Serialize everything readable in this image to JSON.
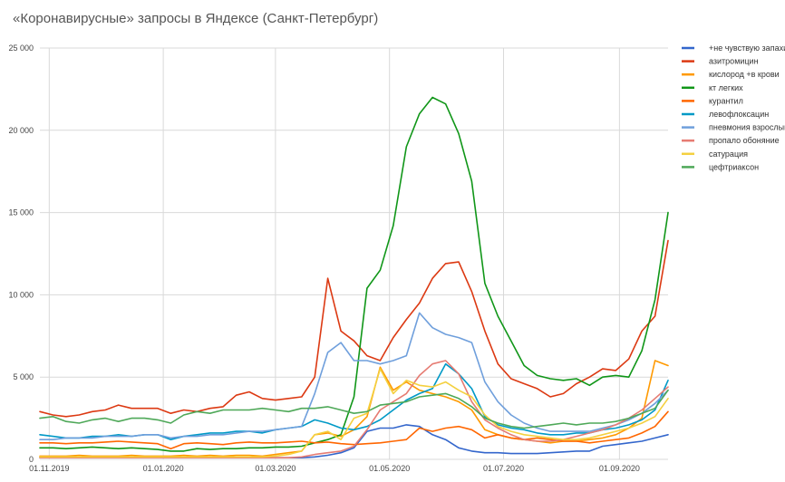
{
  "chart_data": {
    "type": "line",
    "title": "«Коронавирусные» запросы в Яндексе (Санкт-Петербург)",
    "xlabel": "",
    "ylabel": "",
    "x_start": "2019-10-27",
    "x_end": "2020-09-27",
    "x_ticks": [
      {
        "date": "2019-11-01",
        "label": "01.11.2019"
      },
      {
        "date": "2020-01-01",
        "label": "01.01.2020"
      },
      {
        "date": "2020-03-01",
        "label": "01.03.2020"
      },
      {
        "date": "2020-05-01",
        "label": "01.05.2020"
      },
      {
        "date": "2020-07-01",
        "label": "01.07.2020"
      },
      {
        "date": "2020-09-01",
        "label": "01.09.2020"
      }
    ],
    "ylim": [
      0,
      25000
    ],
    "y_ticks": [
      {
        "value": 0,
        "label": "0"
      },
      {
        "value": 5000,
        "label": "5 000"
      },
      {
        "value": 10000,
        "label": "10 000"
      },
      {
        "value": 15000,
        "label": "15 000"
      },
      {
        "value": 20000,
        "label": "20 000"
      },
      {
        "value": 25000,
        "label": "25 000"
      }
    ],
    "grid": true,
    "legend_position": "right",
    "x": [
      "2019-10-27",
      "2019-11-03",
      "2019-11-10",
      "2019-11-17",
      "2019-11-24",
      "2019-12-01",
      "2019-12-08",
      "2019-12-15",
      "2019-12-22",
      "2019-12-29",
      "2020-01-05",
      "2020-01-12",
      "2020-01-19",
      "2020-01-26",
      "2020-02-02",
      "2020-02-09",
      "2020-02-16",
      "2020-02-23",
      "2020-03-01",
      "2020-03-08",
      "2020-03-15",
      "2020-03-22",
      "2020-03-29",
      "2020-04-05",
      "2020-04-12",
      "2020-04-19",
      "2020-04-26",
      "2020-05-03",
      "2020-05-10",
      "2020-05-17",
      "2020-05-24",
      "2020-05-31",
      "2020-06-07",
      "2020-06-14",
      "2020-06-21",
      "2020-06-28",
      "2020-07-05",
      "2020-07-12",
      "2020-07-19",
      "2020-07-26",
      "2020-08-02",
      "2020-08-09",
      "2020-08-16",
      "2020-08-23",
      "2020-08-30",
      "2020-09-06",
      "2020-09-13",
      "2020-09-20",
      "2020-09-27"
    ],
    "series": [
      {
        "name": "+не чувствую запахи",
        "color": "#3366cc",
        "values": [
          100,
          100,
          100,
          100,
          100,
          100,
          100,
          100,
          100,
          100,
          100,
          100,
          100,
          100,
          100,
          100,
          100,
          100,
          100,
          100,
          100,
          150,
          250,
          400,
          700,
          1700,
          1900,
          1900,
          2100,
          2000,
          1500,
          1200,
          700,
          500,
          400,
          400,
          350,
          350,
          350,
          400,
          450,
          500,
          500,
          800,
          900,
          1000,
          1100,
          1300,
          1500
        ]
      },
      {
        "name": "азитромицин",
        "color": "#dc3912",
        "values": [
          2900,
          2700,
          2600,
          2700,
          2900,
          3000,
          3300,
          3100,
          3100,
          3100,
          2800,
          3000,
          2900,
          3100,
          3200,
          3900,
          4100,
          3700,
          3600,
          3700,
          3800,
          5000,
          11000,
          7800,
          7200,
          6300,
          6000,
          7400,
          8500,
          9500,
          11000,
          11900,
          12000,
          10200,
          7800,
          5800,
          4900,
          4600,
          4300,
          3800,
          4000,
          4600,
          5000,
          5500,
          5400,
          6100,
          7800,
          8700,
          13300
        ]
      },
      {
        "name": "кислород +в крови",
        "color": "#ff9900",
        "values": [
          200,
          200,
          200,
          250,
          200,
          200,
          200,
          250,
          200,
          200,
          200,
          250,
          200,
          250,
          200,
          250,
          250,
          200,
          300,
          400,
          500,
          1500,
          1600,
          1400,
          1800,
          2600,
          5600,
          4200,
          4700,
          4200,
          4000,
          3800,
          3500,
          3000,
          1800,
          1500,
          1300,
          1200,
          1100,
          1000,
          1100,
          1100,
          1200,
          1300,
          1500,
          1900,
          2500,
          6000,
          5700
        ]
      },
      {
        "name": "кт легких",
        "color": "#109618",
        "values": [
          700,
          700,
          650,
          700,
          750,
          700,
          650,
          700,
          650,
          600,
          500,
          500,
          650,
          600,
          650,
          650,
          700,
          700,
          750,
          750,
          800,
          1000,
          1200,
          1500,
          3800,
          10400,
          11500,
          14200,
          19000,
          21000,
          22000,
          21600,
          19800,
          16900,
          10700,
          8700,
          7200,
          5700,
          5100,
          4900,
          4800,
          4900,
          4500,
          5000,
          5100,
          5000,
          6600,
          9700,
          15000
        ]
      },
      {
        "name": "курантил",
        "color": "#ff6600",
        "values": [
          1000,
          1000,
          950,
          1000,
          1000,
          1050,
          1100,
          1050,
          1000,
          950,
          650,
          950,
          1000,
          950,
          900,
          1000,
          1050,
          1000,
          1000,
          1050,
          1100,
          1000,
          1050,
          950,
          900,
          950,
          1000,
          1100,
          1200,
          1900,
          1700,
          1900,
          2000,
          1800,
          1300,
          1500,
          1300,
          1200,
          1300,
          1200,
          1100,
          1100,
          1000,
          1100,
          1200,
          1300,
          1600,
          2000,
          2900
        ]
      },
      {
        "name": "левофлоксацин",
        "color": "#0099c6",
        "values": [
          1500,
          1400,
          1300,
          1300,
          1400,
          1400,
          1500,
          1400,
          1500,
          1500,
          1200,
          1400,
          1500,
          1600,
          1600,
          1700,
          1700,
          1600,
          1800,
          1900,
          2000,
          2400,
          2200,
          1900,
          1800,
          2000,
          2400,
          3000,
          3600,
          4000,
          4300,
          5800,
          5200,
          4300,
          2600,
          2100,
          1900,
          1800,
          1600,
          1500,
          1500,
          1600,
          1600,
          1800,
          1900,
          2100,
          2400,
          3000,
          4800
        ]
      },
      {
        "name": "пневмония взрослый",
        "color": "#6f9fdc",
        "values": [
          1200,
          1200,
          1300,
          1300,
          1300,
          1400,
          1400,
          1400,
          1500,
          1500,
          1300,
          1400,
          1400,
          1500,
          1500,
          1600,
          1700,
          1700,
          1800,
          1900,
          2000,
          4000,
          6500,
          7100,
          6000,
          6000,
          5800,
          6000,
          6300,
          8900,
          8000,
          7600,
          7400,
          7100,
          4700,
          3500,
          2700,
          2200,
          1900,
          1700,
          1700,
          1700,
          1700,
          1900,
          2100,
          2400,
          2800,
          3400,
          4200
        ]
      },
      {
        "name": "пропало обоняние",
        "color": "#e67c73",
        "values": [
          100,
          100,
          100,
          100,
          100,
          100,
          100,
          100,
          100,
          100,
          100,
          100,
          100,
          100,
          100,
          100,
          100,
          100,
          100,
          100,
          150,
          300,
          400,
          500,
          800,
          1800,
          3000,
          3500,
          4000,
          5100,
          5800,
          6000,
          5200,
          3500,
          2400,
          1900,
          1500,
          1200,
          1100,
          1100,
          1200,
          1400,
          1600,
          1800,
          2100,
          2500,
          3000,
          3700,
          4400
        ]
      },
      {
        "name": "сатурация",
        "color": "#f4d03f",
        "values": [
          150,
          150,
          150,
          150,
          150,
          150,
          150,
          150,
          150,
          150,
          150,
          150,
          150,
          150,
          150,
          150,
          150,
          150,
          200,
          300,
          500,
          1500,
          1700,
          1200,
          2500,
          2800,
          5500,
          4000,
          4800,
          4500,
          4400,
          4700,
          4200,
          3800,
          2700,
          2000,
          1700,
          1500,
          1400,
          1300,
          1200,
          1200,
          1300,
          1500,
          1700,
          1900,
          2200,
          2600,
          3700
        ]
      },
      {
        "name": "цефтриаксон",
        "color": "#4ea858",
        "values": [
          2500,
          2600,
          2300,
          2200,
          2400,
          2500,
          2300,
          2500,
          2500,
          2400,
          2200,
          2700,
          2900,
          2800,
          3000,
          3000,
          3000,
          3100,
          3000,
          2900,
          3100,
          3100,
          3200,
          3000,
          2800,
          2900,
          3300,
          3400,
          3500,
          3800,
          3900,
          4000,
          3700,
          3200,
          2500,
          2200,
          2000,
          1900,
          2000,
          2100,
          2200,
          2100,
          2200,
          2200,
          2300,
          2500,
          2800,
          3100,
          4200
        ]
      }
    ]
  }
}
